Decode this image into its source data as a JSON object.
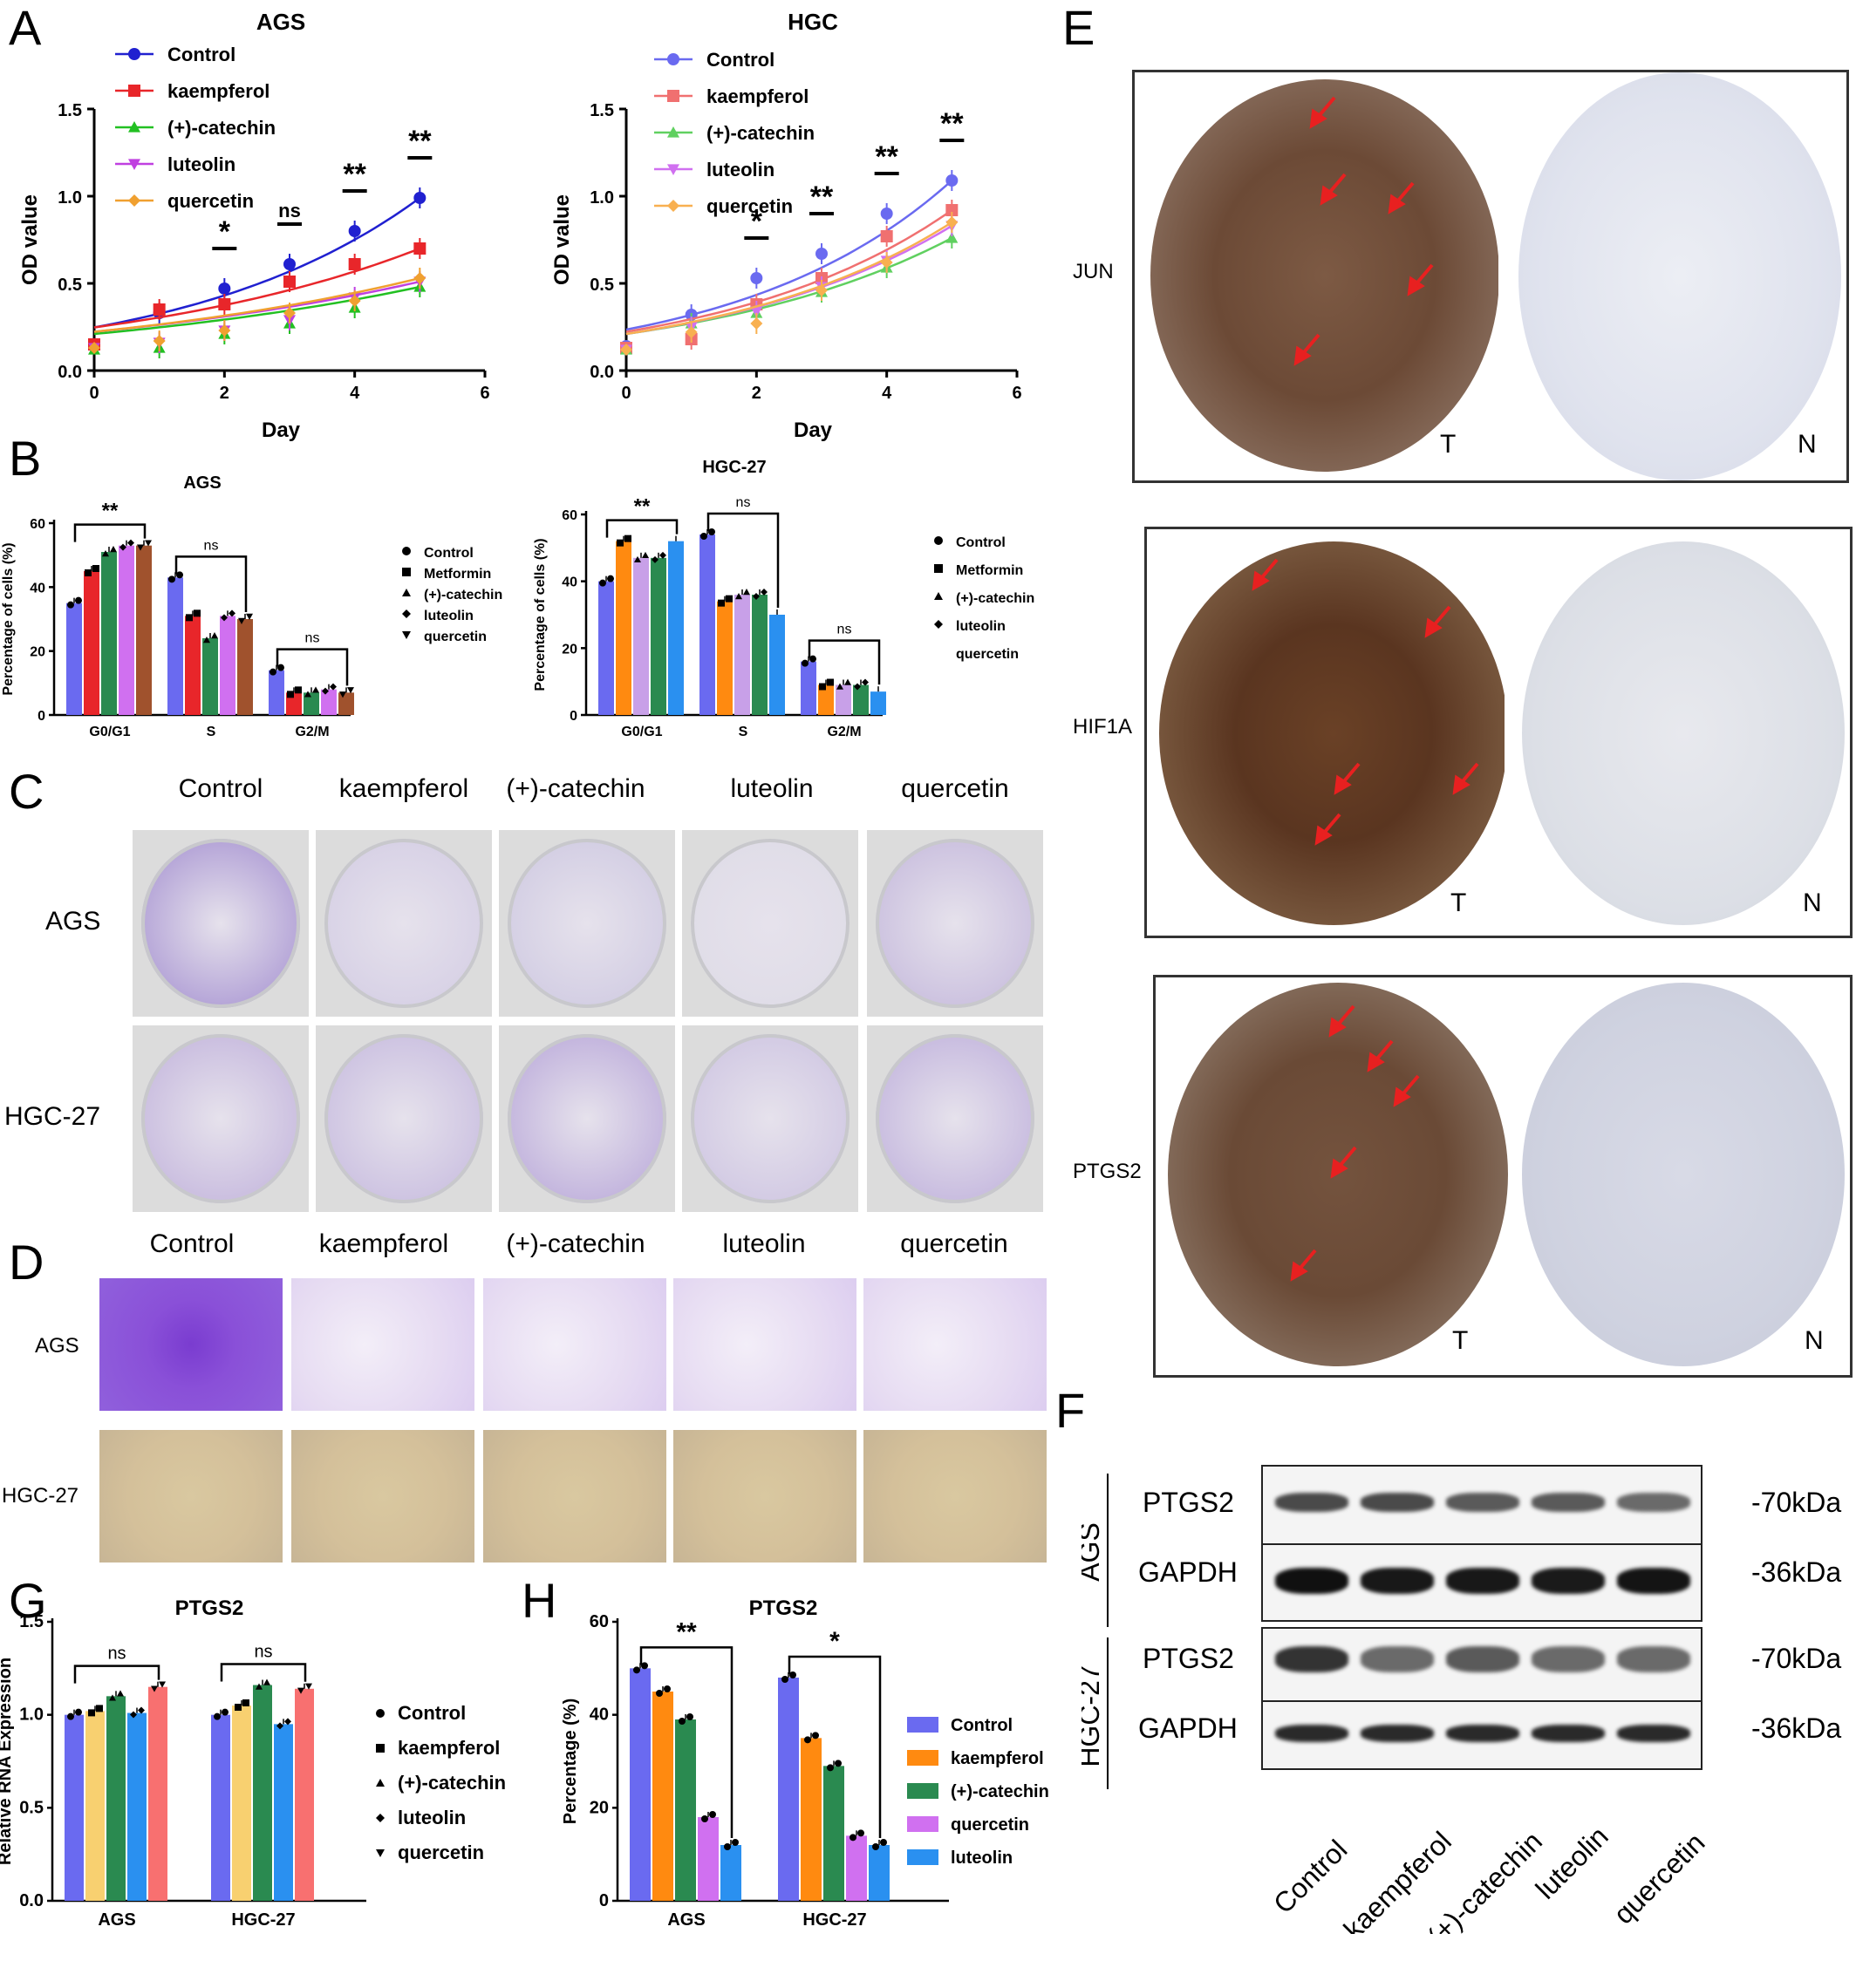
{
  "panels": {
    "A": "A",
    "B": "B",
    "C": "C",
    "D": "D",
    "E": "E",
    "F": "F",
    "G": "G",
    "H": "H"
  },
  "colors": {
    "control": "#2020d0",
    "kaempferol": "#e8262a",
    "catechin": "#22c022",
    "luteolin": "#c040e0",
    "quercetin": "#f0a030",
    "blue_bar": "#6a6af0",
    "yellow_bar": "#f8d070",
    "green_bar": "#2a8a50",
    "violet_bar": "#d070f0",
    "skyblue_bar": "#2a90f0",
    "brown_bar": "#a0522d",
    "orange_bar": "#ff8a10",
    "red_bar": "#f87070"
  },
  "chart_data": [
    {
      "id": "A1",
      "type": "scatter",
      "title": "AGS",
      "xlabel": "Day",
      "ylabel": "OD value",
      "xlim": [
        0,
        6
      ],
      "ylim": [
        0,
        1.5
      ],
      "xticks": [
        "0",
        "2",
        "4",
        "6"
      ],
      "yticks": [
        "0.0",
        "0.5",
        "1.0",
        "1.5"
      ],
      "x": [
        0,
        1,
        2,
        3,
        4,
        5
      ],
      "series": [
        {
          "name": "Control",
          "values": [
            0.15,
            0.33,
            0.47,
            0.61,
            0.8,
            0.99
          ]
        },
        {
          "name": "kaempferol",
          "values": [
            0.15,
            0.35,
            0.38,
            0.51,
            0.61,
            0.7
          ]
        },
        {
          "name": "(+)-catechin",
          "values": [
            0.12,
            0.13,
            0.21,
            0.27,
            0.36,
            0.48
          ]
        },
        {
          "name": "luteolin",
          "values": [
            0.13,
            0.16,
            0.23,
            0.29,
            0.42,
            0.51
          ]
        },
        {
          "name": "quercetin",
          "values": [
            0.13,
            0.17,
            0.23,
            0.33,
            0.4,
            0.53
          ]
        }
      ],
      "significance": [
        "*",
        "ns",
        "**",
        "**"
      ]
    },
    {
      "id": "A2",
      "type": "scatter",
      "title": "HGC",
      "xlabel": "Day",
      "ylabel": "OD value",
      "xlim": [
        0,
        6
      ],
      "ylim": [
        0,
        1.5
      ],
      "xticks": [
        "0",
        "2",
        "4",
        "6"
      ],
      "yticks": [
        "0.0",
        "0.5",
        "1.0",
        "1.5"
      ],
      "x": [
        0,
        1,
        2,
        3,
        4,
        5
      ],
      "series": [
        {
          "name": "Control",
          "values": [
            0.14,
            0.32,
            0.53,
            0.67,
            0.9,
            1.09
          ]
        },
        {
          "name": "kaempferol",
          "values": [
            0.13,
            0.18,
            0.38,
            0.53,
            0.77,
            0.92
          ]
        },
        {
          "name": "(+)-catechin",
          "values": [
            0.12,
            0.27,
            0.33,
            0.45,
            0.59,
            0.76
          ]
        },
        {
          "name": "luteolin",
          "values": [
            0.12,
            0.25,
            0.34,
            0.48,
            0.63,
            0.83
          ]
        },
        {
          "name": "quercetin",
          "values": [
            0.12,
            0.22,
            0.27,
            0.46,
            0.62,
            0.85
          ]
        }
      ],
      "significance": [
        "*",
        "**",
        "**",
        "**"
      ]
    },
    {
      "id": "B1",
      "type": "bar",
      "title": "AGS",
      "ylabel": "Percentage of cells (%)",
      "ylim": [
        0,
        60
      ],
      "yticks": [
        "0",
        "20",
        "40",
        "60"
      ],
      "categories": [
        "G0/G1",
        "S",
        "G2/M"
      ],
      "series": [
        {
          "name": "Control",
          "values": [
            35,
            43,
            14
          ]
        },
        {
          "name": "Metformin",
          "values": [
            45,
            31,
            7
          ]
        },
        {
          "name": "(+)-catechin",
          "values": [
            51,
            24,
            7
          ]
        },
        {
          "name": "luteolin",
          "values": [
            53,
            31,
            8
          ]
        },
        {
          "name": "quercetin",
          "values": [
            53,
            30,
            7
          ]
        }
      ],
      "significance": [
        "**",
        "ns",
        "ns"
      ]
    },
    {
      "id": "B2",
      "type": "bar",
      "title": "HGC-27",
      "ylabel": "Percentage of cells (%)",
      "ylim": [
        0,
        60
      ],
      "yticks": [
        "0",
        "20",
        "40",
        "60"
      ],
      "categories": [
        "G0/G1",
        "S",
        "G2/M"
      ],
      "series": [
        {
          "name": "Control",
          "values": [
            40,
            54,
            16
          ]
        },
        {
          "name": "Metformin",
          "values": [
            52,
            34,
            9
          ]
        },
        {
          "name": "(+)-catechin",
          "values": [
            47,
            36,
            9
          ]
        },
        {
          "name": "luteolin",
          "values": [
            47,
            36,
            9
          ]
        },
        {
          "name": "quercetin",
          "values": [
            52,
            30,
            7
          ]
        }
      ],
      "significance": [
        "**",
        "ns",
        "ns"
      ]
    },
    {
      "id": "G",
      "type": "bar",
      "title": "PTGS2",
      "ylabel": "Relative RNA Expression",
      "ylim": [
        0,
        1.5
      ],
      "yticks": [
        "0.0",
        "0.5",
        "1.0",
        "1.5"
      ],
      "categories": [
        "AGS",
        "HGC-27"
      ],
      "series": [
        {
          "name": "Control",
          "values": [
            1.0,
            1.0
          ]
        },
        {
          "name": "kaempferol",
          "values": [
            1.02,
            1.05
          ]
        },
        {
          "name": "(+)-catechin",
          "values": [
            1.1,
            1.16
          ]
        },
        {
          "name": "luteolin",
          "values": [
            1.01,
            0.95
          ]
        },
        {
          "name": "quercetin",
          "values": [
            1.15,
            1.14
          ]
        }
      ],
      "significance": [
        "ns",
        "ns"
      ]
    },
    {
      "id": "H",
      "type": "bar",
      "title": "PTGS2",
      "ylabel": "Percentage (%)",
      "ylim": [
        0,
        60
      ],
      "yticks": [
        "0",
        "20",
        "40",
        "60"
      ],
      "categories": [
        "AGS",
        "HGC-27"
      ],
      "series": [
        {
          "name": "Control",
          "values": [
            50,
            48
          ]
        },
        {
          "name": "kaempferol",
          "values": [
            45,
            35
          ]
        },
        {
          "name": "(+)-catechin",
          "values": [
            39,
            29
          ]
        },
        {
          "name": "quercetin",
          "values": [
            18,
            14
          ]
        },
        {
          "name": "luteolin",
          "values": [
            12,
            12
          ]
        }
      ],
      "significance": [
        "**",
        "*"
      ]
    }
  ],
  "panel_c": {
    "columns": [
      "Control",
      "kaempferol",
      "(+)-catechin",
      "luteolin",
      "quercetin"
    ],
    "rows": [
      "AGS",
      "HGC-27"
    ]
  },
  "panel_d": {
    "columns": [
      "Control",
      "kaempferol",
      "(+)-catechin",
      "luteolin",
      "quercetin"
    ],
    "rows": [
      "AGS",
      "HGC-27"
    ]
  },
  "panel_e": {
    "rows": [
      "JUN",
      "HIF1A",
      "PTGS2"
    ],
    "tumor_label": "T",
    "normal_label": "N"
  },
  "panel_f": {
    "cell_lines": [
      "AGS",
      "HGC-27"
    ],
    "proteins": [
      "PTGS2",
      "GAPDH",
      "PTGS2",
      "GAPDH"
    ],
    "sizes": [
      "-70kDa",
      "-36kDa",
      "-70kDa",
      "-36kDa"
    ],
    "lanes": [
      "Control",
      "kaempferol",
      "(+)-catechin",
      "luteolin",
      "quercetin"
    ]
  }
}
